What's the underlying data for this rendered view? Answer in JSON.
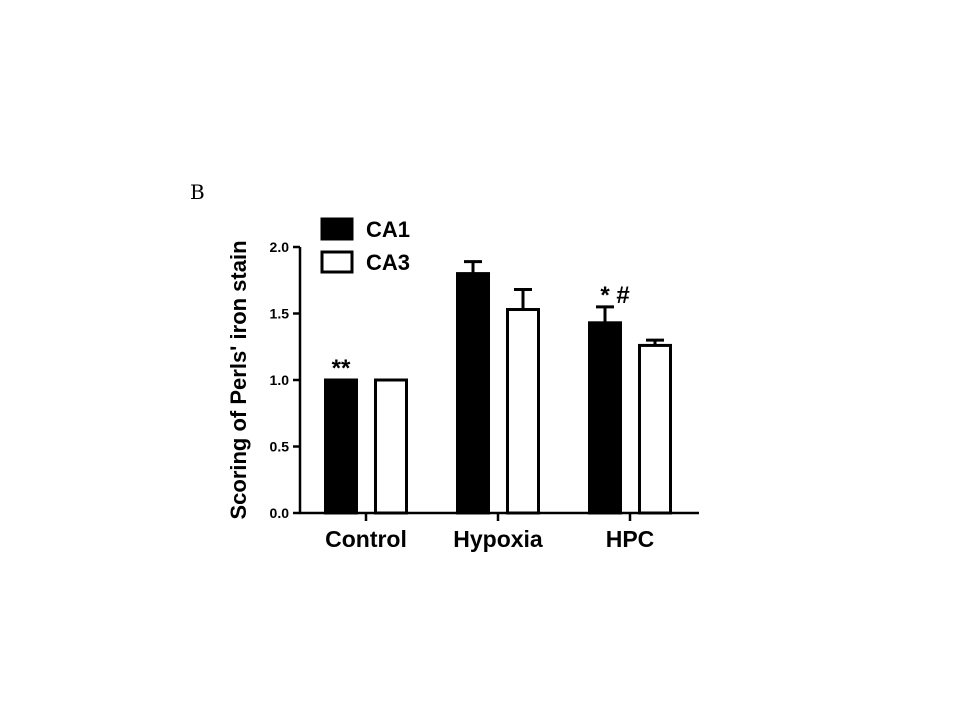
{
  "panel_label": "B",
  "chart_data": {
    "type": "bar",
    "categories": [
      "Control",
      "Hypoxia",
      "HPC"
    ],
    "series": [
      {
        "name": "CA1",
        "color": "#000000",
        "values": [
          1.0,
          1.8,
          1.43
        ],
        "errors": [
          0.0,
          0.09,
          0.12
        ]
      },
      {
        "name": "CA3",
        "color": "#ffffff",
        "values": [
          1.0,
          1.53,
          1.26
        ],
        "errors": [
          0.0,
          0.15,
          0.04
        ]
      }
    ],
    "annotations": [
      "**",
      "",
      "* #"
    ],
    "ylabel": "Scoring of Perls' iron stain",
    "xlabel": "",
    "ylim": [
      0,
      2.0
    ],
    "yticks": [
      "0.0",
      "0.5",
      "1.0",
      "1.5",
      "2.0"
    ],
    "legend_position": "top-left",
    "grid": false
  }
}
